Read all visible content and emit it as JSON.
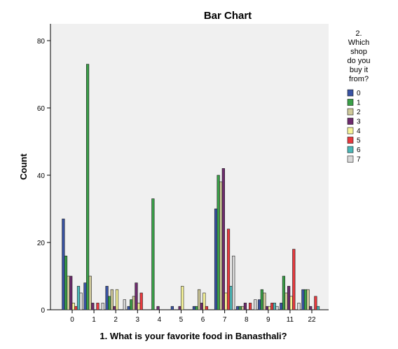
{
  "chart_data": {
    "type": "bar",
    "title": "Bar Chart",
    "xlabel": "1. What is your favorite food in Banasthali?",
    "ylabel": "Count",
    "ylim": [
      0,
      85
    ],
    "yticks": [
      0,
      20,
      40,
      60,
      80
    ],
    "grid": false,
    "legend_placement": "right",
    "legend_title": [
      "2.",
      "Which",
      "shop",
      "do you",
      "buy it",
      "from?"
    ],
    "categories": [
      "0",
      "1",
      "2",
      "3",
      "4",
      "5",
      "6",
      "7",
      "8",
      "9",
      "11",
      "22"
    ],
    "series": [
      {
        "name": "0",
        "color": "#3953a4",
        "values": [
          27,
          8,
          7,
          1,
          0,
          1,
          1,
          30,
          1,
          3,
          2,
          6
        ]
      },
      {
        "name": "1",
        "color": "#3aa048",
        "values": [
          16,
          73,
          4,
          3,
          33,
          0,
          1,
          40,
          1,
          6,
          10,
          6
        ]
      },
      {
        "name": "2",
        "color": "#cfc99a",
        "values": [
          10,
          10,
          6,
          4,
          0,
          0,
          6,
          38,
          1,
          5,
          5,
          6
        ]
      },
      {
        "name": "3",
        "color": "#6e2b6e",
        "values": [
          10,
          2,
          1,
          8,
          1,
          1,
          2,
          42,
          2,
          1,
          7,
          1
        ]
      },
      {
        "name": "4",
        "color": "#f7f49a",
        "values": [
          2,
          0,
          6,
          2,
          0,
          7,
          5,
          5,
          0,
          1,
          4,
          0
        ]
      },
      {
        "name": "5",
        "color": "#e8393e",
        "values": [
          1,
          2,
          0,
          5,
          0,
          0,
          1,
          24,
          2,
          2,
          18,
          4
        ]
      },
      {
        "name": "6",
        "color": "#4cb8b8",
        "values": [
          7,
          0,
          0,
          0,
          0,
          0,
          0,
          7,
          0,
          2,
          0,
          1
        ]
      },
      {
        "name": "7",
        "color": "#d9d9d9",
        "values": [
          5,
          2,
          3,
          0,
          0,
          0,
          0,
          16,
          3,
          1,
          2,
          0
        ]
      }
    ]
  }
}
